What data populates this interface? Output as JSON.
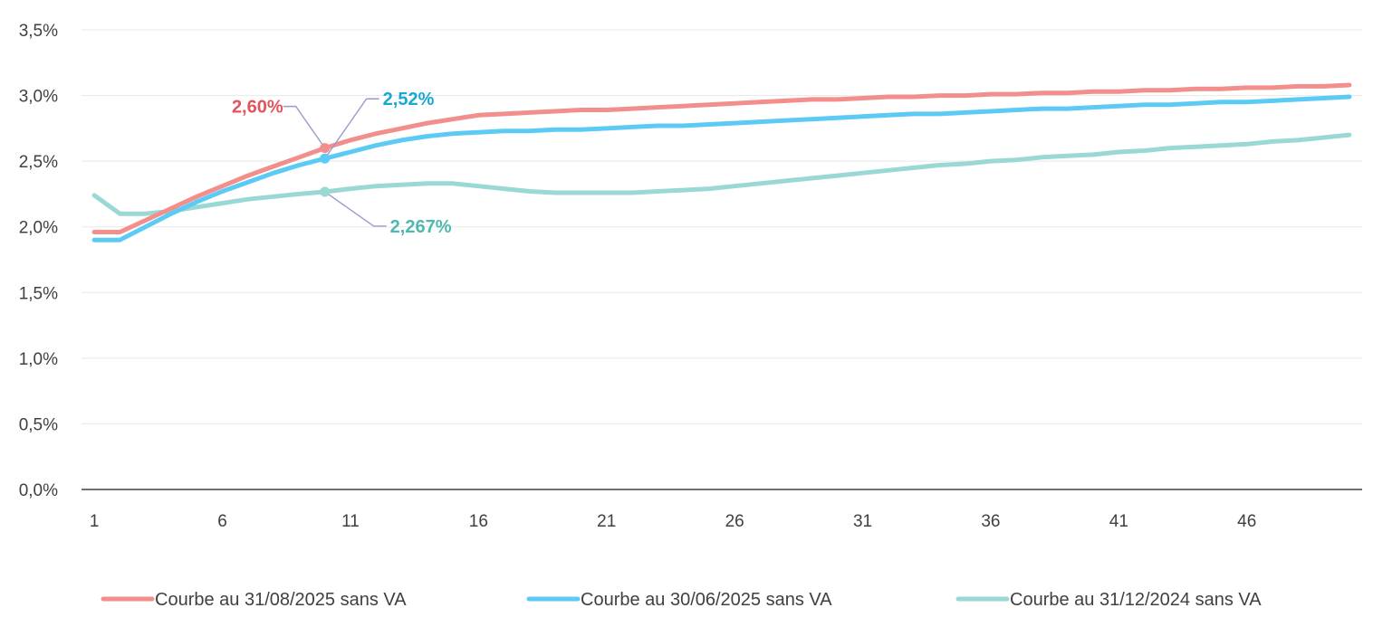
{
  "chart_data": {
    "type": "line",
    "title": "",
    "xlabel": "",
    "ylabel": "",
    "x": [
      1,
      2,
      3,
      4,
      5,
      6,
      7,
      8,
      9,
      10,
      11,
      12,
      13,
      14,
      15,
      16,
      17,
      18,
      19,
      20,
      21,
      22,
      23,
      24,
      25,
      26,
      27,
      28,
      29,
      30,
      31,
      32,
      33,
      34,
      35,
      36,
      37,
      38,
      39,
      40,
      41,
      42,
      43,
      44,
      45,
      46,
      47,
      48,
      49,
      50
    ],
    "xlim": [
      0.5,
      50.5
    ],
    "x_ticks": [
      1,
      6,
      11,
      16,
      21,
      26,
      31,
      36,
      41,
      46
    ],
    "x_tick_labels": [
      "1",
      "6",
      "11",
      "16",
      "21",
      "26",
      "31",
      "36",
      "41",
      "46"
    ],
    "ylim": [
      0,
      3.5
    ],
    "y_ticks": [
      0,
      0.5,
      1.0,
      1.5,
      2.0,
      2.5,
      3.0,
      3.5
    ],
    "y_tick_labels": [
      "0,0%",
      "0,5%",
      "1,0%",
      "1,5%",
      "2,0%",
      "2,5%",
      "3,0%",
      "3,5%"
    ],
    "grid": "horizontal",
    "legend": "bottom",
    "series": [
      {
        "name": "Courbe au 31/08/2025 sans VA",
        "color": "#F28E8B",
        "values": [
          1.96,
          1.96,
          2.05,
          2.14,
          2.23,
          2.31,
          2.39,
          2.46,
          2.53,
          2.6,
          2.66,
          2.71,
          2.75,
          2.79,
          2.82,
          2.85,
          2.86,
          2.87,
          2.88,
          2.89,
          2.89,
          2.9,
          2.91,
          2.92,
          2.93,
          2.94,
          2.95,
          2.96,
          2.97,
          2.97,
          2.98,
          2.99,
          2.99,
          3.0,
          3.0,
          3.01,
          3.01,
          3.02,
          3.02,
          3.03,
          3.03,
          3.04,
          3.04,
          3.05,
          3.05,
          3.06,
          3.06,
          3.07,
          3.07,
          3.08
        ]
      },
      {
        "name": "Courbe au 30/06/2025 sans VA",
        "color": "#5BCBF5",
        "values": [
          1.9,
          1.9,
          2.0,
          2.1,
          2.19,
          2.27,
          2.34,
          2.41,
          2.47,
          2.52,
          2.57,
          2.62,
          2.66,
          2.69,
          2.71,
          2.72,
          2.73,
          2.73,
          2.74,
          2.74,
          2.75,
          2.76,
          2.77,
          2.77,
          2.78,
          2.79,
          2.8,
          2.81,
          2.82,
          2.83,
          2.84,
          2.85,
          2.86,
          2.86,
          2.87,
          2.88,
          2.89,
          2.9,
          2.9,
          2.91,
          2.92,
          2.93,
          2.93,
          2.94,
          2.95,
          2.95,
          2.96,
          2.97,
          2.98,
          2.99
        ]
      },
      {
        "name": "Courbe au 31/12/2024 sans VA",
        "color": "#9AD8D4",
        "values": [
          2.24,
          2.1,
          2.1,
          2.12,
          2.15,
          2.18,
          2.21,
          2.23,
          2.25,
          2.267,
          2.29,
          2.31,
          2.32,
          2.33,
          2.33,
          2.31,
          2.29,
          2.27,
          2.26,
          2.26,
          2.26,
          2.26,
          2.27,
          2.28,
          2.29,
          2.31,
          2.33,
          2.35,
          2.37,
          2.39,
          2.41,
          2.43,
          2.45,
          2.47,
          2.48,
          2.5,
          2.51,
          2.53,
          2.54,
          2.55,
          2.57,
          2.58,
          2.6,
          2.61,
          2.62,
          2.63,
          2.65,
          2.66,
          2.68,
          2.7
        ]
      }
    ],
    "annotations": [
      {
        "series": 0,
        "x": 10,
        "y": 2.6,
        "label": "2,60%",
        "color": "#E2545B"
      },
      {
        "series": 1,
        "x": 10,
        "y": 2.52,
        "label": "2,52%",
        "color": "#1AA7D6"
      },
      {
        "series": 2,
        "x": 10,
        "y": 2.267,
        "label": "2,267%",
        "color": "#4FB8B0"
      }
    ]
  }
}
